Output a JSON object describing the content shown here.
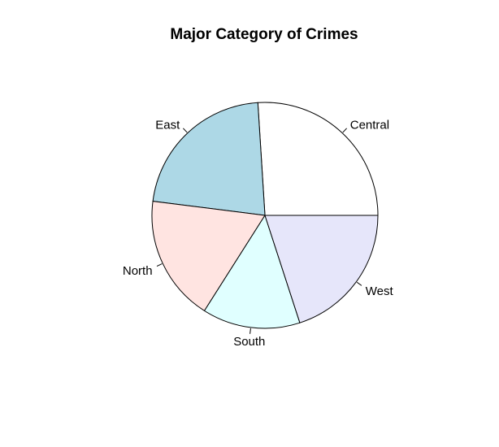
{
  "chart_data": {
    "type": "pie",
    "title": "Major Category of Crimes",
    "start_angle_deg": 0,
    "direction": "counterclockwise",
    "slices": [
      {
        "label": "Central",
        "value": 26,
        "color": "#FFFFFF"
      },
      {
        "label": "East",
        "value": 22,
        "color": "#ADD8E6"
      },
      {
        "label": "North",
        "value": 18,
        "color": "#FFE4E1"
      },
      {
        "label": "South",
        "value": 14,
        "color": "#E0FFFF"
      },
      {
        "label": "West",
        "value": 20,
        "color": "#E6E6FA"
      }
    ]
  }
}
